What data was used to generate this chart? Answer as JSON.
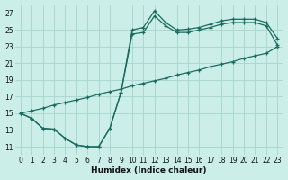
{
  "xlabel": "Humidex (Indice chaleur)",
  "bg_color": "#cceee8",
  "line_color": "#1a6b5e",
  "grid_color": "#aad8d0",
  "xlim": [
    -0.5,
    23.5
  ],
  "ylim": [
    10.0,
    28.0
  ],
  "yticks": [
    11,
    13,
    15,
    17,
    19,
    21,
    23,
    25,
    27
  ],
  "xticks": [
    0,
    1,
    2,
    3,
    4,
    5,
    6,
    7,
    8,
    9,
    10,
    11,
    12,
    13,
    14,
    15,
    16,
    17,
    18,
    19,
    20,
    21,
    22,
    23
  ],
  "line1_x": [
    0,
    1,
    2,
    3,
    4,
    5,
    6,
    7,
    8,
    9,
    10,
    11,
    12,
    13,
    14,
    15,
    16,
    17,
    18,
    19,
    20,
    21,
    22,
    23
  ],
  "line1_y": [
    15,
    14.4,
    13.2,
    13.1,
    12.0,
    11.2,
    11.0,
    11.0,
    13.2,
    17.5,
    25.0,
    25.3,
    27.3,
    25.9,
    25.0,
    25.1,
    25.3,
    25.7,
    26.1,
    26.3,
    26.3,
    26.3,
    25.9,
    24.0
  ],
  "line2_x": [
    0,
    1,
    2,
    3,
    4,
    5,
    6,
    7,
    8,
    9,
    10,
    11,
    12,
    13,
    14,
    15,
    16,
    17,
    18,
    19,
    20,
    21,
    22,
    23
  ],
  "line2_y": [
    15,
    14.4,
    13.2,
    13.1,
    12.0,
    11.2,
    11.0,
    11.0,
    13.2,
    17.5,
    24.5,
    24.7,
    26.7,
    25.5,
    24.7,
    24.7,
    25.0,
    25.3,
    25.7,
    25.9,
    25.9,
    25.9,
    25.5,
    23.2
  ],
  "line3_x": [
    0,
    1,
    2,
    3,
    4,
    5,
    6,
    7,
    8,
    9,
    10,
    11,
    12,
    13,
    14,
    15,
    16,
    17,
    18,
    19,
    20,
    21,
    22,
    23
  ],
  "line3_y": [
    15,
    15.3,
    15.6,
    16.0,
    16.3,
    16.6,
    16.9,
    17.3,
    17.6,
    17.9,
    18.3,
    18.6,
    18.9,
    19.2,
    19.6,
    19.9,
    20.2,
    20.6,
    20.9,
    21.2,
    21.6,
    21.9,
    22.2,
    23.0
  ]
}
